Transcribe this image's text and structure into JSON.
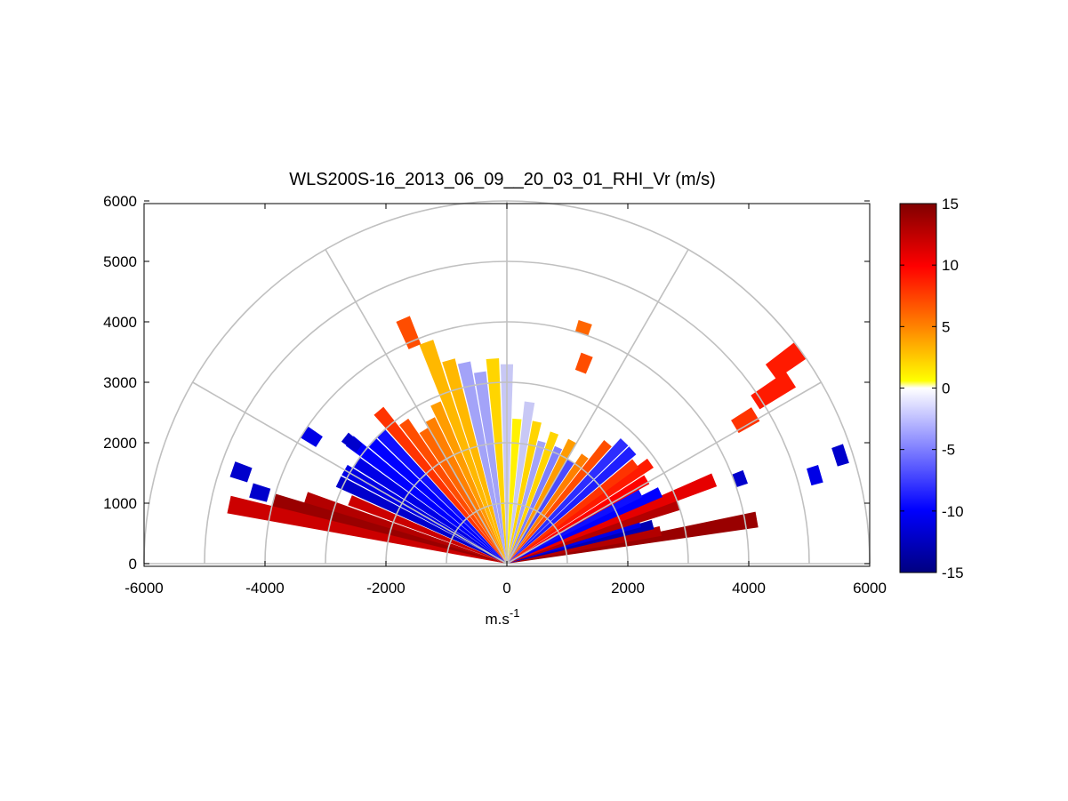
{
  "chart_data": {
    "type": "heatmap",
    "subtype": "polar-rhi-sector",
    "title": "WLS200S-16_2013_06_09__20_03_01_RHI_Vr (m/s)",
    "xlabel": "m.s",
    "xlabel_superscript": "-1",
    "ylabel": "",
    "xlim": [
      -6000,
      6000
    ],
    "ylim": [
      0,
      6000
    ],
    "x_ticks": [
      -6000,
      -4000,
      -2000,
      0,
      2000,
      4000,
      6000
    ],
    "y_ticks": [
      0,
      1000,
      2000,
      3000,
      4000,
      5000,
      6000
    ],
    "x_tick_labels": [
      "-6000",
      "-4000",
      "-2000",
      "0",
      "2000",
      "4000",
      "6000"
    ],
    "y_tick_labels": [
      "0",
      "1000",
      "2000",
      "3000",
      "4000",
      "5000",
      "6000"
    ],
    "polar_grid": {
      "ring_radii": [
        1000,
        2000,
        3000,
        4000,
        5000,
        6000
      ],
      "spoke_angles_deg": [
        0,
        30,
        60,
        90,
        120,
        150,
        180
      ]
    },
    "colorbar": {
      "min": -15,
      "max": 15,
      "ticks": [
        -15,
        -10,
        -5,
        0,
        5,
        10,
        15
      ],
      "tick_labels": [
        "-15",
        "-10",
        "-5",
        "0",
        "5",
        "10",
        "15"
      ],
      "colormap": [
        "#000080",
        "#0000ff",
        "#ffffff",
        "#ffff00",
        "#ff8000",
        "#ff0000",
        "#800000"
      ]
    },
    "beams": [
      {
        "angle": 10,
        "r0": 0,
        "r1": 4200,
        "v": 14
      },
      {
        "angle": 12,
        "r0": 0,
        "r1": 2600,
        "v": 13
      },
      {
        "angle": 15,
        "r0": 0,
        "r1": 2500,
        "v": -13
      },
      {
        "angle": 17,
        "r0": 0,
        "r1": 2300,
        "v": -11
      },
      {
        "angle": 19,
        "r0": 0,
        "r1": 3000,
        "v": 13
      },
      {
        "angle": 22,
        "r0": 0,
        "r1": 3700,
        "v": 11
      },
      {
        "angle": 25,
        "r0": 0,
        "r1": 2800,
        "v": -10
      },
      {
        "angle": 28,
        "r0": 0,
        "r1": 2500,
        "v": -9
      },
      {
        "angle": 31,
        "r0": 0,
        "r1": 2700,
        "v": 10
      },
      {
        "angle": 35,
        "r0": 0,
        "r1": 2900,
        "v": 9
      },
      {
        "angle": 38,
        "r0": 0,
        "r1": 2700,
        "v": 8
      },
      {
        "angle": 42,
        "r0": 0,
        "r1": 2800,
        "v": -8
      },
      {
        "angle": 46,
        "r0": 0,
        "r1": 2800,
        "v": -7
      },
      {
        "angle": 50,
        "r0": 0,
        "r1": 2600,
        "v": 7
      },
      {
        "angle": 54,
        "r0": 0,
        "r1": 2200,
        "v": 5
      },
      {
        "angle": 58,
        "r0": 0,
        "r1": 2000,
        "v": -5
      },
      {
        "angle": 62,
        "r0": 0,
        "r1": 2300,
        "v": 4
      },
      {
        "angle": 66,
        "r0": 0,
        "r1": 2100,
        "v": -3
      },
      {
        "angle": 70,
        "r0": 0,
        "r1": 2300,
        "v": 2
      },
      {
        "angle": 74,
        "r0": 0,
        "r1": 2100,
        "v": -2
      },
      {
        "angle": 78,
        "r0": 0,
        "r1": 2400,
        "v": 2
      },
      {
        "angle": 82,
        "r0": 0,
        "r1": 2700,
        "v": -1
      },
      {
        "angle": 86,
        "r0": 0,
        "r1": 2400,
        "v": 1
      },
      {
        "angle": 90,
        "r0": 0,
        "r1": 3300,
        "v": -1
      },
      {
        "angle": 94,
        "r0": 0,
        "r1": 3400,
        "v": 2
      },
      {
        "angle": 98,
        "r0": 0,
        "r1": 3200,
        "v": -2
      },
      {
        "angle": 102,
        "r0": 0,
        "r1": 3400,
        "v": -2
      },
      {
        "angle": 106,
        "r0": 0,
        "r1": 3500,
        "v": 3
      },
      {
        "angle": 110,
        "r0": 0,
        "r1": 3900,
        "v": 3
      },
      {
        "angle": 114,
        "r0": 0,
        "r1": 2900,
        "v": 4
      },
      {
        "angle": 118,
        "r0": 0,
        "r1": 2700,
        "v": 5
      },
      {
        "angle": 122,
        "r0": 0,
        "r1": 2600,
        "v": 6
      },
      {
        "angle": 126,
        "r0": 0,
        "r1": 2900,
        "v": 7
      },
      {
        "angle": 130,
        "r0": 0,
        "r1": 3300,
        "v": 8
      },
      {
        "angle": 134,
        "r0": 0,
        "r1": 3000,
        "v": -9
      },
      {
        "angle": 138,
        "r0": 0,
        "r1": 3000,
        "v": -10
      },
      {
        "angle": 142,
        "r0": 0,
        "r1": 3300,
        "v": -10
      },
      {
        "angle": 146,
        "r0": 0,
        "r1": 3000,
        "v": -11
      },
      {
        "angle": 150,
        "r0": 0,
        "r1": 3100,
        "v": -11
      },
      {
        "angle": 154,
        "r0": 0,
        "r1": 3100,
        "v": -12
      },
      {
        "angle": 158,
        "r0": 0,
        "r1": 2800,
        "v": 12
      },
      {
        "angle": 162,
        "r0": 0,
        "r1": 3500,
        "v": 13
      },
      {
        "angle": 165,
        "r0": 0,
        "r1": 4000,
        "v": 14
      },
      {
        "angle": 168,
        "r0": 0,
        "r1": 4700,
        "v": 12
      }
    ],
    "patches": [
      {
        "angle": 36,
        "r0": 5400,
        "r1": 6000,
        "v": 9
      },
      {
        "angle": 33,
        "r0": 4900,
        "r1": 5600,
        "v": 9
      },
      {
        "angle": 31,
        "r0": 4400,
        "r1": 4800,
        "v": 8
      },
      {
        "angle": 20,
        "r0": 4000,
        "r1": 4200,
        "v": -12
      },
      {
        "angle": 16,
        "r0": 5200,
        "r1": 5400,
        "v": -11
      },
      {
        "angle": 18,
        "r0": 5700,
        "r1": 5900,
        "v": -12
      },
      {
        "angle": 113,
        "r0": 3900,
        "r1": 4400,
        "v": 7
      },
      {
        "angle": 72,
        "r0": 4000,
        "r1": 4200,
        "v": 6
      },
      {
        "angle": 69,
        "r0": 3400,
        "r1": 3700,
        "v": 7
      },
      {
        "angle": 142,
        "r0": 3100,
        "r1": 3400,
        "v": -12
      },
      {
        "angle": 147,
        "r0": 3700,
        "r1": 4000,
        "v": -11
      },
      {
        "angle": 161,
        "r0": 4500,
        "r1": 4800,
        "v": -12
      },
      {
        "angle": 164,
        "r0": 4100,
        "r1": 4400,
        "v": -12
      }
    ]
  }
}
